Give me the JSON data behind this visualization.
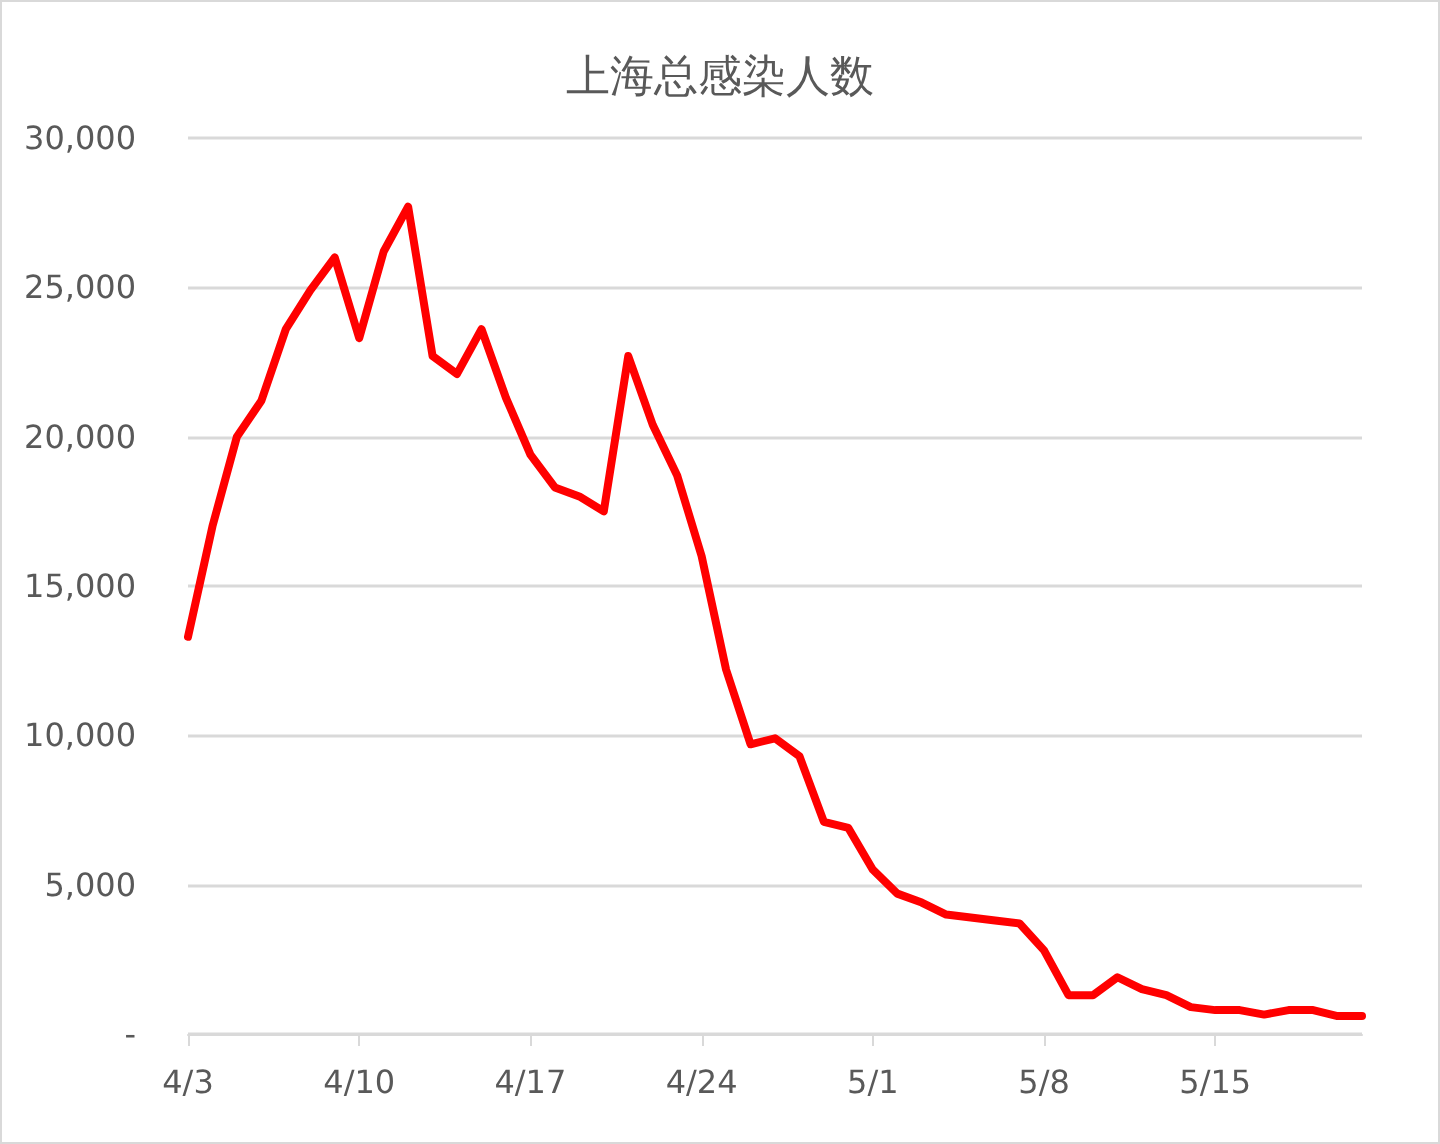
{
  "chart_data": {
    "type": "line",
    "title": "上海总感染人数",
    "categories": [
      "4/3",
      null,
      null,
      null,
      null,
      null,
      null,
      "4/10",
      null,
      null,
      null,
      null,
      null,
      null,
      "4/17",
      null,
      null,
      null,
      null,
      null,
      null,
      "4/24",
      null,
      null,
      null,
      null,
      null,
      null,
      "5/1",
      null,
      null,
      null,
      null,
      null,
      null,
      "5/8",
      null,
      null,
      null,
      null,
      null,
      null,
      "5/15",
      null,
      null,
      null,
      null,
      null,
      null
    ],
    "series": [
      {
        "color": "#ff0000",
        "values": [
          13300,
          17000,
          20000,
          21200,
          23600,
          24900,
          26000,
          23300,
          26200,
          27700,
          22700,
          22100,
          23600,
          21300,
          19400,
          18300,
          18000,
          17500,
          22700,
          20400,
          18700,
          16000,
          12200,
          9700,
          9900,
          9300,
          7100,
          6900,
          5500,
          4700,
          4400,
          4000,
          3900,
          3800,
          3700,
          2800,
          1300,
          1300,
          1900,
          1500,
          1300,
          900,
          800,
          800,
          650,
          800,
          800,
          600,
          600
        ]
      }
    ],
    "ylim": [
      0,
      30000
    ],
    "yticks": [
      {
        "value": 0,
        "label": "-"
      },
      {
        "value": 5000,
        "label": "5,000"
      },
      {
        "value": 10000,
        "label": "10,000"
      },
      {
        "value": 15000,
        "label": "15,000"
      },
      {
        "value": 20000,
        "label": "20,000"
      },
      {
        "value": 25000,
        "label": "25,000"
      },
      {
        "value": 30000,
        "label": "30,000"
      }
    ],
    "grid": "y",
    "marker": "none",
    "line_style": "solid"
  }
}
